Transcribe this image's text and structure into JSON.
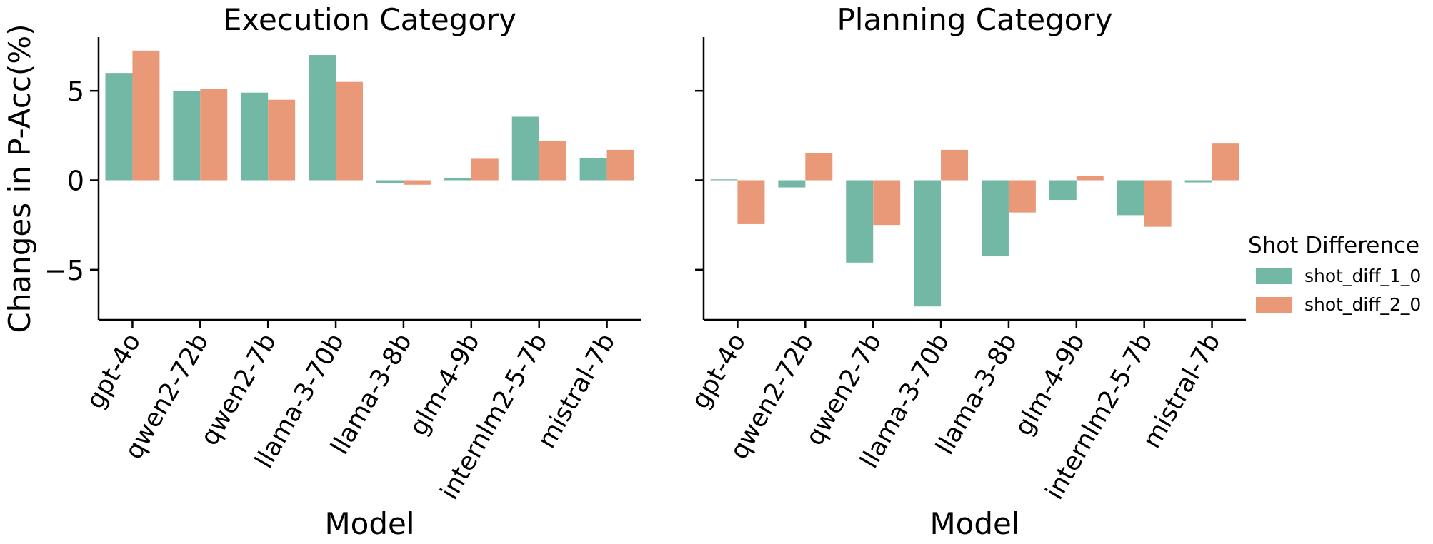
{
  "chart_data": [
    {
      "type": "bar",
      "title": "Execution Category",
      "xlabel": "Model",
      "ylabel": "Changes in P-Acc(%)",
      "ylim": [
        -7.8,
        8.0
      ],
      "yticks": [
        -5,
        0,
        5
      ],
      "ytick_labels": [
        "−5",
        "0",
        "5"
      ],
      "categories": [
        "gpt-4o",
        "qwen2-72b",
        "qwen2-7b",
        "llama-3-70b",
        "llama-3-8b",
        "glm-4-9b",
        "internlm2-5-7b",
        "mistral-7b"
      ],
      "series": [
        {
          "name": "shot_diff_1_0",
          "values": [
            6.0,
            5.0,
            4.9,
            7.0,
            -0.15,
            0.12,
            3.55,
            1.25
          ]
        },
        {
          "name": "shot_diff_2_0",
          "values": [
            7.25,
            5.1,
            4.5,
            5.5,
            -0.25,
            1.2,
            2.2,
            1.7
          ]
        }
      ]
    },
    {
      "type": "bar",
      "title": "Planning Category",
      "xlabel": "Model",
      "ylim": [
        -7.8,
        8.0
      ],
      "yticks": [
        -5,
        0,
        5
      ],
      "categories": [
        "gpt-4o",
        "qwen2-72b",
        "qwen2-7b",
        "llama-3-70b",
        "llama-3-8b",
        "glm-4-9b",
        "internlm2-5-7b",
        "mistral-7b"
      ],
      "series": [
        {
          "name": "shot_diff_1_0",
          "values": [
            0.05,
            -0.4,
            -4.6,
            -7.05,
            -4.25,
            -1.1,
            -1.95,
            -0.12
          ]
        },
        {
          "name": "shot_diff_2_0",
          "values": [
            -2.45,
            1.5,
            -2.5,
            1.7,
            -1.8,
            0.25,
            -2.6,
            2.05
          ]
        }
      ]
    }
  ],
  "legend": {
    "title": "Shot Difference",
    "entries": [
      "shot_diff_1_0",
      "shot_diff_2_0"
    ]
  },
  "colors": {
    "shot_diff_1_0": "#72b8a5",
    "shot_diff_2_0": "#e99878",
    "axis": "#000000"
  }
}
